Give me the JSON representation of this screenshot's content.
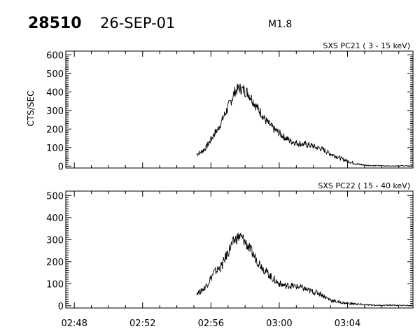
{
  "header": {
    "event_id": "28510",
    "date": "26-SEP-01",
    "class": "M1.8"
  },
  "colors": {
    "line": "#000000",
    "background": "#ffffff"
  },
  "chart_data": [
    {
      "type": "line",
      "title": "SXS PC21  (  3 - 15 keV)",
      "ylabel": "CTS/SEC",
      "xlabel": "",
      "ylim": [
        -10,
        620
      ],
      "xlim": [
        "02:47:30",
        "03:07:50"
      ],
      "yticks": [
        "0",
        "100",
        "200",
        "300",
        "400",
        "500",
        "600"
      ],
      "xtick_labels_shown": false,
      "grid": false,
      "series": [
        {
          "x": [
            "02:55:10",
            "02:55:25",
            "02:55:40",
            "02:55:55",
            "02:56:10",
            "02:56:25",
            "02:56:40",
            "02:56:55",
            "02:57:10",
            "02:57:25",
            "02:57:40",
            "02:57:55",
            "02:58:10",
            "02:58:25",
            "02:58:40",
            "02:58:55",
            "02:59:10",
            "02:59:25",
            "02:59:40",
            "02:59:55",
            "03:00:10",
            "03:00:25",
            "03:00:40",
            "03:00:55",
            "03:01:10",
            "03:01:25",
            "03:01:40",
            "03:01:55",
            "03:02:10",
            "03:02:25",
            "03:02:40",
            "03:02:55",
            "03:03:10",
            "03:03:25",
            "03:03:40",
            "03:03:55",
            "03:04:10",
            "03:04:25",
            "03:04:40",
            "03:05:00",
            "03:05:30",
            "03:06:00",
            "03:06:30",
            "03:07:00",
            "03:07:50"
          ],
          "values": [
            65,
            75,
            95,
            130,
            170,
            200,
            250,
            300,
            350,
            405,
            420,
            410,
            395,
            360,
            320,
            290,
            250,
            225,
            200,
            185,
            165,
            150,
            135,
            128,
            122,
            118,
            115,
            110,
            100,
            95,
            85,
            70,
            60,
            50,
            40,
            30,
            22,
            15,
            10,
            5,
            3,
            2,
            1,
            2,
            1
          ]
        }
      ]
    },
    {
      "type": "line",
      "title": "SXS PC22  ( 15 - 40 keV)",
      "ylabel": "",
      "xlabel": "",
      "ylim": [
        -10,
        520
      ],
      "xlim": [
        "02:47:30",
        "03:07:50"
      ],
      "yticks": [
        "0",
        "100",
        "200",
        "300",
        "400",
        "500"
      ],
      "xticks": [
        "02:48",
        "02:52",
        "02:56",
        "03:00",
        "03:04"
      ],
      "grid": false,
      "series": [
        {
          "x": [
            "02:55:10",
            "02:55:25",
            "02:55:40",
            "02:55:55",
            "02:56:10",
            "02:56:25",
            "02:56:40",
            "02:56:55",
            "02:57:10",
            "02:57:25",
            "02:57:40",
            "02:57:55",
            "02:58:10",
            "02:58:25",
            "02:58:40",
            "02:58:55",
            "02:59:10",
            "02:59:25",
            "02:59:40",
            "02:59:55",
            "03:00:10",
            "03:00:25",
            "03:00:40",
            "03:00:55",
            "03:01:10",
            "03:01:25",
            "03:01:40",
            "03:01:55",
            "03:02:10",
            "03:02:25",
            "03:02:40",
            "03:02:55",
            "03:03:10",
            "03:03:25",
            "03:03:40",
            "03:03:55",
            "03:04:10",
            "03:04:30",
            "03:05:00",
            "03:05:30",
            "03:06:00",
            "03:06:30",
            "03:07:00",
            "03:07:50"
          ],
          "values": [
            60,
            65,
            85,
            115,
            150,
            165,
            185,
            230,
            270,
            300,
            315,
            300,
            270,
            240,
            210,
            185,
            160,
            140,
            120,
            105,
            95,
            90,
            92,
            88,
            85,
            80,
            70,
            65,
            60,
            55,
            40,
            30,
            22,
            18,
            14,
            12,
            10,
            8,
            5,
            3,
            2,
            3,
            2,
            1
          ]
        }
      ]
    }
  ]
}
